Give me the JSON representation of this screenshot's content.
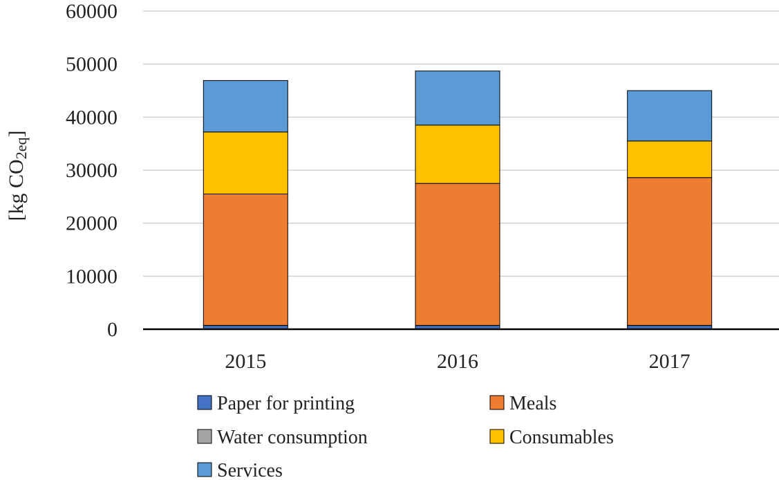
{
  "chart_data": {
    "type": "bar",
    "stacked": true,
    "categories": [
      "2015",
      "2016",
      "2017"
    ],
    "ylabel_prefix": "[kg CO",
    "ylabel_sub": "2eq",
    "ylabel_suffix": "]",
    "xlabel": "",
    "ylim": [
      0,
      60000
    ],
    "yticks": [
      0,
      10000,
      20000,
      30000,
      40000,
      50000,
      60000
    ],
    "grid": true,
    "legend_position": "bottom",
    "series": [
      {
        "name": "Paper for printing",
        "color": "#4472C4",
        "values": [
          700,
          700,
          700
        ]
      },
      {
        "name": "Water consumption",
        "color": "#A5A5A5",
        "values": [
          30,
          30,
          30
        ]
      },
      {
        "name": "Meals",
        "color": "#ED7D31",
        "values": [
          24770,
          26770,
          27870
        ]
      },
      {
        "name": "Consumables",
        "color": "#FFC000",
        "values": [
          11700,
          11000,
          6900
        ]
      },
      {
        "name": "Services",
        "color": "#5B9BD5",
        "values": [
          9700,
          10200,
          9500
        ]
      }
    ],
    "legend_order": [
      "Paper for printing",
      "Meals",
      "Water consumption",
      "Consumables",
      "Services"
    ]
  }
}
